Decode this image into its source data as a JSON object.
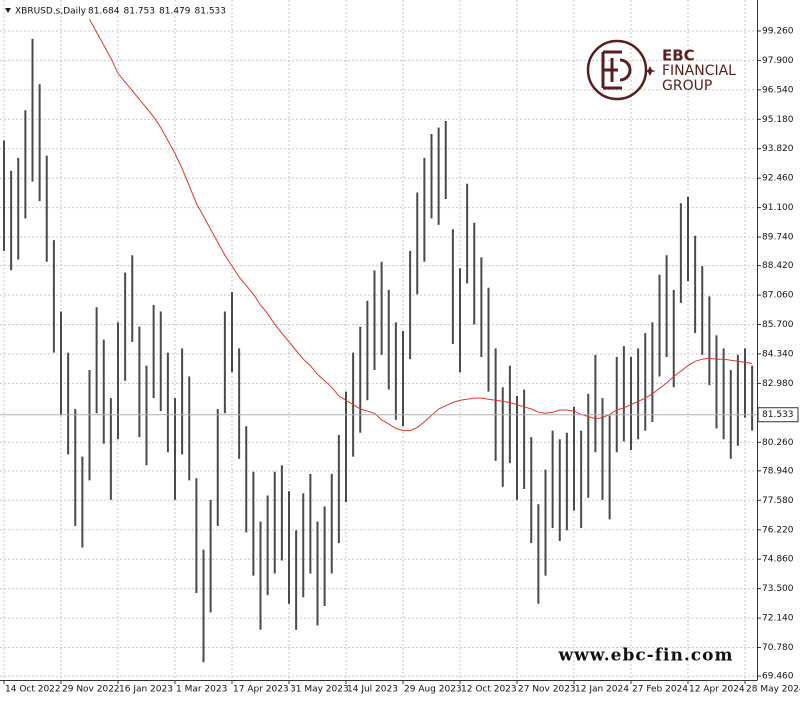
{
  "chart_data": {
    "type": "ohlc",
    "symbol": "XBRUSD.s,Daily",
    "header_values": [
      81.684,
      81.753,
      81.479,
      81.533
    ],
    "last": 81.533,
    "brand": {
      "name": "EBC",
      "line1": "FINANCIAL",
      "line2": "GROUP",
      "url": "www.ebc-fin.com"
    },
    "categories": [
      "14 Oct 2022",
      null,
      null,
      null,
      null,
      null,
      null,
      null,
      "29 Nov 2022",
      null,
      null,
      null,
      null,
      null,
      null,
      null,
      "16 Jan 2023",
      null,
      null,
      null,
      null,
      null,
      null,
      null,
      "1 Mar 2023",
      null,
      null,
      null,
      null,
      null,
      null,
      null,
      "17 Apr 2023",
      null,
      null,
      null,
      null,
      null,
      null,
      null,
      "31 May 2023",
      null,
      null,
      null,
      null,
      null,
      null,
      null,
      "14 Jul 2023",
      null,
      null,
      null,
      null,
      null,
      null,
      null,
      "29 Aug 2023",
      null,
      null,
      null,
      null,
      null,
      null,
      null,
      "12 Oct 2023",
      null,
      null,
      null,
      null,
      null,
      null,
      null,
      "27 Nov 2023",
      null,
      null,
      null,
      null,
      null,
      null,
      null,
      "12 Jan 2024",
      null,
      null,
      null,
      null,
      null,
      null,
      null,
      "27 Feb 2024",
      null,
      null,
      null,
      null,
      null,
      null,
      null,
      "12 Apr 2024",
      null,
      null,
      null,
      null,
      null,
      null,
      null,
      "28 May 2024",
      null
    ],
    "high": [
      94.2,
      92.8,
      93.4,
      95.6,
      98.9,
      96.8,
      93.5,
      89.6,
      86.3,
      84.4,
      81.8,
      79.6,
      83.6,
      86.5,
      85,
      82.3,
      85.8,
      88.1,
      88.9,
      85.6,
      83.8,
      86.6,
      86.3,
      84.4,
      82.3,
      84.6,
      83.3,
      78.6,
      75.3,
      77.6,
      81.8,
      86.3,
      87.2,
      84.6,
      81,
      78.9,
      76.6,
      77.8,
      78.9,
      79.2,
      78,
      76.2,
      77.9,
      78.8,
      76.6,
      77.3,
      78.8,
      80.6,
      82.6,
      84.4,
      85.6,
      86.8,
      88.2,
      88.6,
      87.3,
      85.8,
      85.4,
      89.1,
      91.8,
      93.4,
      94.5,
      94.8,
      95.1,
      90.1,
      88.3,
      92.2,
      90.4,
      88.8,
      87.4,
      84.6,
      82.8,
      83.8,
      82.4,
      82.7,
      80.5,
      77.4,
      79,
      80.8,
      80.4,
      80.7,
      81.9,
      80.8,
      82.5,
      84.3,
      82.3,
      81.5,
      84.2,
      84.7,
      84.2,
      84.6,
      85.3,
      85.8,
      88,
      88.9,
      87.3,
      91.3,
      91.6,
      89.8,
      88.4,
      87,
      85.2,
      84.6,
      83.6,
      84.3,
      84.6,
      83.8
    ],
    "low": [
      89.1,
      88.2,
      88.7,
      90.6,
      92.3,
      91.4,
      88.6,
      84.4,
      81.5,
      79.7,
      76.4,
      75.4,
      78.5,
      81.6,
      80.2,
      77.6,
      80.4,
      83.1,
      84.9,
      80.5,
      79.2,
      82.3,
      81.7,
      79.8,
      77.6,
      79.7,
      78.5,
      73.3,
      70.1,
      72.4,
      76.4,
      81.6,
      83.5,
      79.5,
      76.1,
      74.1,
      71.6,
      73.2,
      74.2,
      74.8,
      72.8,
      71.6,
      73.1,
      74.2,
      71.8,
      72.7,
      74.2,
      75.6,
      77.5,
      79.6,
      80.7,
      82.2,
      83.6,
      84.3,
      82.7,
      81.3,
      81,
      84.1,
      87.1,
      88.6,
      90.6,
      90.3,
      91.5,
      84.8,
      83.5,
      87.6,
      85.7,
      84.2,
      82.6,
      79.4,
      78.2,
      79.3,
      77.6,
      78.1,
      75.6,
      72.8,
      74.1,
      76.3,
      75.7,
      76.2,
      77.1,
      76.3,
      77.7,
      79.8,
      77.6,
      76.7,
      79.8,
      80.3,
      79.9,
      80.4,
      80.8,
      81.2,
      83.3,
      84.2,
      82.8,
      86.7,
      87.7,
      85.3,
      84.3,
      82.9,
      80.9,
      80.4,
      79.5,
      80.1,
      81.4,
      80.8
    ],
    "moving_average": [
      null,
      null,
      null,
      null,
      null,
      null,
      null,
      null,
      null,
      null,
      null,
      null,
      99.8,
      99.2,
      98.6,
      98.0,
      97.3,
      96.9,
      96.5,
      96.1,
      95.7,
      95.3,
      94.8,
      94.2,
      93.6,
      92.9,
      92.1,
      91.3,
      90.7,
      90.1,
      89.5,
      88.9,
      88.4,
      87.9,
      87.5,
      87.1,
      86.6,
      86.2,
      85.7,
      85.3,
      84.9,
      84.5,
      84.1,
      83.8,
      83.4,
      83.1,
      82.8,
      82.4,
      82.2,
      82.0,
      81.8,
      81.7,
      81.6,
      81.3,
      81.1,
      80.9,
      80.8,
      80.8,
      80.95,
      81.2,
      81.5,
      81.8,
      81.95,
      82.1,
      82.2,
      82.25,
      82.3,
      82.3,
      82.25,
      82.2,
      82.15,
      82.1,
      82.0,
      81.9,
      81.8,
      81.65,
      81.6,
      81.65,
      81.75,
      81.75,
      81.7,
      81.55,
      81.45,
      81.35,
      81.4,
      81.55,
      81.75,
      81.85,
      82.0,
      82.15,
      82.3,
      82.5,
      82.75,
      83.0,
      83.3,
      83.55,
      83.8,
      84.0,
      84.1,
      84.15,
      84.1,
      84.1,
      84.05,
      84.0,
      83.95,
      83.9
    ],
    "bar_color": "#4a4a4a",
    "ma_color": "#e0382e",
    "ylim": [
      69.28,
      100.69
    ],
    "yticks": [
      {
        "value": 99.26,
        "label": "99.260"
      },
      {
        "value": 97.9,
        "label": "97.900"
      },
      {
        "value": 96.54,
        "label": "96.540"
      },
      {
        "value": 95.18,
        "label": "95.180"
      },
      {
        "value": 93.82,
        "label": "93.820"
      },
      {
        "value": 92.46,
        "label": "92.460"
      },
      {
        "value": 91.1,
        "label": "91.100"
      },
      {
        "value": 89.74,
        "label": "89.740"
      },
      {
        "value": 88.42,
        "label": "88.420"
      },
      {
        "value": 87.06,
        "label": "87.060"
      },
      {
        "value": 85.7,
        "label": "85.700"
      },
      {
        "value": 84.34,
        "label": "84.340"
      },
      {
        "value": 82.98,
        "label": "82.980"
      },
      {
        "value": 80.26,
        "label": "80.260"
      },
      {
        "value": 78.94,
        "label": "78.940"
      },
      {
        "value": 77.58,
        "label": "77.580"
      },
      {
        "value": 76.22,
        "label": "76.220"
      },
      {
        "value": 74.86,
        "label": "74.860"
      },
      {
        "value": 73.5,
        "label": "73.500"
      },
      {
        "value": 72.14,
        "label": "72.140"
      },
      {
        "value": 70.78,
        "label": "70.780"
      },
      {
        "value": 69.46,
        "label": "69.460"
      }
    ],
    "grid": true
  }
}
